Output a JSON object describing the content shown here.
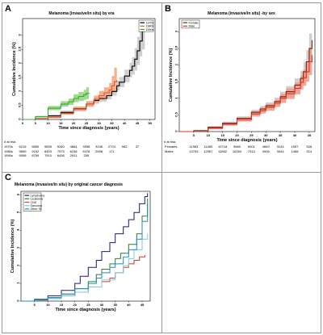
{
  "panels": {
    "A": {
      "letter": "A",
      "title": "Melanoma (invasive/in situ) by era",
      "risk_header": "# at risk:",
      "risk_rows": [
        {
          "label": "1970s",
          "values": [
            "6215",
            "5859",
            "5659",
            "5260",
            "4664",
            "3958",
            "3246",
            "2724",
            "962",
            "37"
          ]
        },
        {
          "label": "1980s",
          "values": [
            "9699",
            "9152",
            "8303",
            "7575",
            "6238",
            "5378",
            "2596",
            "171"
          ]
        },
        {
          "label": "1990s",
          "values": [
            "9008",
            "8759",
            "7910",
            "6436",
            "2911",
            "255"
          ]
        }
      ]
    },
    "B": {
      "letter": "B",
      "title": "Melanoma (invasive/in situ) -by sex",
      "risk_header": "# at risk:",
      "risk_rows": [
        {
          "label": "Females",
          "values": [
            "11963",
            "11460",
            "10718",
            "9580",
            "6901",
            "4840",
            "3144",
            "1597",
            "528"
          ]
        },
        {
          "label": "Males",
          "values": [
            "13753",
            "12967",
            "11852",
            "10260",
            "7313",
            "4906",
            "3044",
            "1488",
            "514"
          ]
        }
      ]
    },
    "C": {
      "letter": "C",
      "title": "Melanoma (invasive/in situ) by original cancer diagnosis"
    }
  },
  "chart_data": [
    {
      "type": "line",
      "title": "Melanoma (invasive/in situ) by era",
      "xlabel": "Time since diagnosis (years)",
      "ylabel": "Cumulative Incidence (%)",
      "xlim": [
        0,
        52
      ],
      "ylim": [
        0,
        3.6
      ],
      "xticks": [
        0,
        5,
        10,
        15,
        20,
        25,
        30,
        35,
        40,
        45,
        50
      ],
      "yticks": [
        0,
        0.5,
        1,
        1.5,
        2,
        2.5,
        3
      ],
      "grid": false,
      "legend_position": "top-right",
      "series": [
        {
          "name": "1970s",
          "color": "#000000",
          "band_color": "#c8c8c8",
          "x": [
            0,
            5,
            10,
            15,
            20,
            25,
            28,
            30,
            33,
            35,
            37,
            38,
            40,
            42,
            43,
            44,
            45,
            46,
            47,
            48
          ],
          "y": [
            0,
            0.03,
            0.13,
            0.25,
            0.38,
            0.55,
            0.68,
            0.75,
            0.85,
            1.0,
            1.2,
            1.33,
            1.55,
            1.75,
            1.9,
            2.15,
            2.45,
            2.8,
            3.15,
            3.3
          ],
          "lower": [
            0,
            0.01,
            0.08,
            0.18,
            0.3,
            0.45,
            0.56,
            0.63,
            0.72,
            0.85,
            1.03,
            1.15,
            1.33,
            1.5,
            1.6,
            1.75,
            1.95,
            2.25,
            2.5,
            2.6
          ],
          "upper": [
            0,
            0.05,
            0.18,
            0.32,
            0.47,
            0.65,
            0.8,
            0.88,
            0.99,
            1.16,
            1.38,
            1.52,
            1.78,
            2.02,
            2.22,
            2.55,
            2.95,
            3.35,
            3.5,
            3.55
          ]
        },
        {
          "name": "1980s",
          "color": "#e05a2b",
          "band_color": "#f4a27a",
          "x": [
            0,
            5,
            10,
            15,
            20,
            25,
            28,
            30,
            32,
            34,
            35,
            36,
            37
          ],
          "y": [
            0,
            0.02,
            0.08,
            0.22,
            0.37,
            0.55,
            0.72,
            0.85,
            0.95,
            1.05,
            1.2,
            1.35,
            1.4
          ],
          "lower": [
            0,
            0.01,
            0.05,
            0.17,
            0.3,
            0.46,
            0.6,
            0.7,
            0.78,
            0.85,
            0.95,
            0.98,
            1.0
          ],
          "upper": [
            0,
            0.03,
            0.12,
            0.28,
            0.45,
            0.65,
            0.85,
            1.02,
            1.15,
            1.3,
            1.55,
            1.85,
            1.95
          ]
        },
        {
          "name": "1990s",
          "color": "#3aa83a",
          "band_color": "#8fd47a",
          "x": [
            0,
            5,
            10,
            15,
            18,
            20,
            22,
            24,
            25,
            26
          ],
          "y": [
            0,
            0.1,
            0.4,
            0.55,
            0.63,
            0.75,
            0.82,
            0.88,
            0.93,
            0.95
          ],
          "lower": [
            0,
            0.07,
            0.33,
            0.46,
            0.52,
            0.62,
            0.66,
            0.7,
            0.73,
            0.74
          ],
          "upper": [
            0,
            0.13,
            0.48,
            0.65,
            0.75,
            0.9,
            0.98,
            1.06,
            1.15,
            1.2
          ]
        }
      ]
    },
    {
      "type": "line",
      "title": "Melanoma (invasive/in situ) -by sex",
      "xlabel": "Time since diagnosis (years)",
      "ylabel": "Cumulative Incidence (%)",
      "xlim": [
        0,
        47
      ],
      "ylim": [
        0,
        3.4
      ],
      "xticks": [
        5,
        10,
        15,
        20,
        25,
        30,
        35,
        40,
        45
      ],
      "yticks": [
        0,
        0.5,
        1,
        1.5,
        2,
        2.5,
        3
      ],
      "grid": false,
      "legend_position": "top-left",
      "series": [
        {
          "name": "Female",
          "color": "#7a1f10",
          "band_color": "#c9c9c9",
          "x": [
            0,
            5,
            10,
            15,
            20,
            25,
            28,
            30,
            33,
            35,
            37,
            40,
            42,
            43,
            44,
            45,
            46
          ],
          "y": [
            0,
            0.03,
            0.13,
            0.25,
            0.4,
            0.58,
            0.68,
            0.78,
            0.9,
            1.05,
            1.2,
            1.4,
            1.6,
            1.8,
            2.1,
            2.5,
            2.75
          ],
          "lower": [
            0,
            0.02,
            0.1,
            0.2,
            0.34,
            0.5,
            0.59,
            0.68,
            0.78,
            0.9,
            1.03,
            1.2,
            1.37,
            1.52,
            1.75,
            2.05,
            2.25
          ],
          "upper": [
            0,
            0.04,
            0.16,
            0.3,
            0.46,
            0.66,
            0.77,
            0.88,
            1.02,
            1.2,
            1.37,
            1.6,
            1.83,
            2.08,
            2.45,
            2.95,
            3.25
          ]
        },
        {
          "name": "Male",
          "color": "#e0301e",
          "band_color": "#f29a86",
          "x": [
            0,
            5,
            10,
            15,
            20,
            25,
            28,
            30,
            33,
            35,
            37,
            40,
            42,
            43,
            44,
            45,
            46
          ],
          "y": [
            0,
            0.02,
            0.1,
            0.22,
            0.36,
            0.53,
            0.63,
            0.73,
            0.85,
            1.0,
            1.14,
            1.3,
            1.48,
            1.62,
            1.8,
            2.1,
            2.3
          ],
          "lower": [
            0,
            0.01,
            0.07,
            0.18,
            0.3,
            0.45,
            0.54,
            0.63,
            0.74,
            0.86,
            0.98,
            1.12,
            1.27,
            1.38,
            1.5,
            1.7,
            1.85
          ],
          "upper": [
            0,
            0.03,
            0.13,
            0.26,
            0.42,
            0.61,
            0.72,
            0.83,
            0.96,
            1.14,
            1.3,
            1.48,
            1.69,
            1.86,
            2.1,
            2.5,
            2.75
          ]
        }
      ]
    },
    {
      "type": "line",
      "title": "Melanoma (invasive/in situ) by original cancer diagnosis",
      "xlabel": "Time since diagnosis (years)",
      "ylabel": "Cumulative Incidence (%)",
      "xlim": [
        0,
        48
      ],
      "ylim": [
        0,
        6.2
      ],
      "xticks": [
        5,
        10,
        15,
        20,
        25,
        30,
        35,
        40,
        45
      ],
      "yticks": [
        0,
        1,
        2,
        3,
        4,
        5,
        6
      ],
      "grid": false,
      "legend_position": "top-left",
      "series": [
        {
          "name": "Lymphoma",
          "color": "#1a1a7a",
          "x": [
            0,
            5,
            10,
            15,
            20,
            22,
            25,
            28,
            30,
            33,
            35,
            38,
            40,
            42,
            44,
            46,
            47
          ],
          "y": [
            0,
            0.1,
            0.3,
            0.6,
            1.0,
            1.4,
            1.9,
            2.3,
            2.8,
            3.3,
            3.8,
            4.2,
            4.6,
            5.0,
            5.5,
            5.9,
            6.1
          ]
        },
        {
          "name": "Leukemia",
          "color": "#2e7d32",
          "x": [
            0,
            5,
            10,
            15,
            20,
            25,
            28,
            30,
            33,
            35,
            37,
            40,
            43,
            45,
            47
          ],
          "y": [
            0,
            0.08,
            0.2,
            0.4,
            0.7,
            1.1,
            1.5,
            1.8,
            2.1,
            2.4,
            2.7,
            3.2,
            3.8,
            4.8,
            5.8
          ]
        },
        {
          "name": "CNS",
          "color": "#d23a2a",
          "x": [
            0,
            5,
            10,
            15,
            20,
            25,
            30,
            33,
            35,
            38,
            40,
            42,
            44,
            46
          ],
          "y": [
            0,
            0.05,
            0.15,
            0.3,
            0.5,
            0.8,
            1.1,
            1.3,
            1.6,
            1.9,
            2.1,
            2.3,
            2.5,
            2.6
          ]
        },
        {
          "name": "Sarcoma",
          "color": "#7ec8e3",
          "x": [
            0,
            5,
            10,
            15,
            20,
            25,
            30,
            35,
            38,
            40,
            42,
            45,
            47
          ],
          "y": [
            0,
            0.05,
            0.15,
            0.3,
            0.5,
            0.8,
            1.2,
            1.6,
            2.0,
            2.4,
            2.9,
            3.5,
            3.8
          ]
        },
        {
          "name": "Other St",
          "color": "#1e8fb5",
          "x": [
            0,
            5,
            10,
            15,
            20,
            25,
            28,
            30,
            33,
            35,
            38,
            40,
            43,
            45,
            47
          ],
          "y": [
            0,
            0.07,
            0.2,
            0.4,
            0.7,
            1.0,
            1.3,
            1.6,
            1.9,
            2.1,
            2.5,
            2.9,
            3.5,
            4.5,
            5.5
          ]
        }
      ]
    }
  ]
}
